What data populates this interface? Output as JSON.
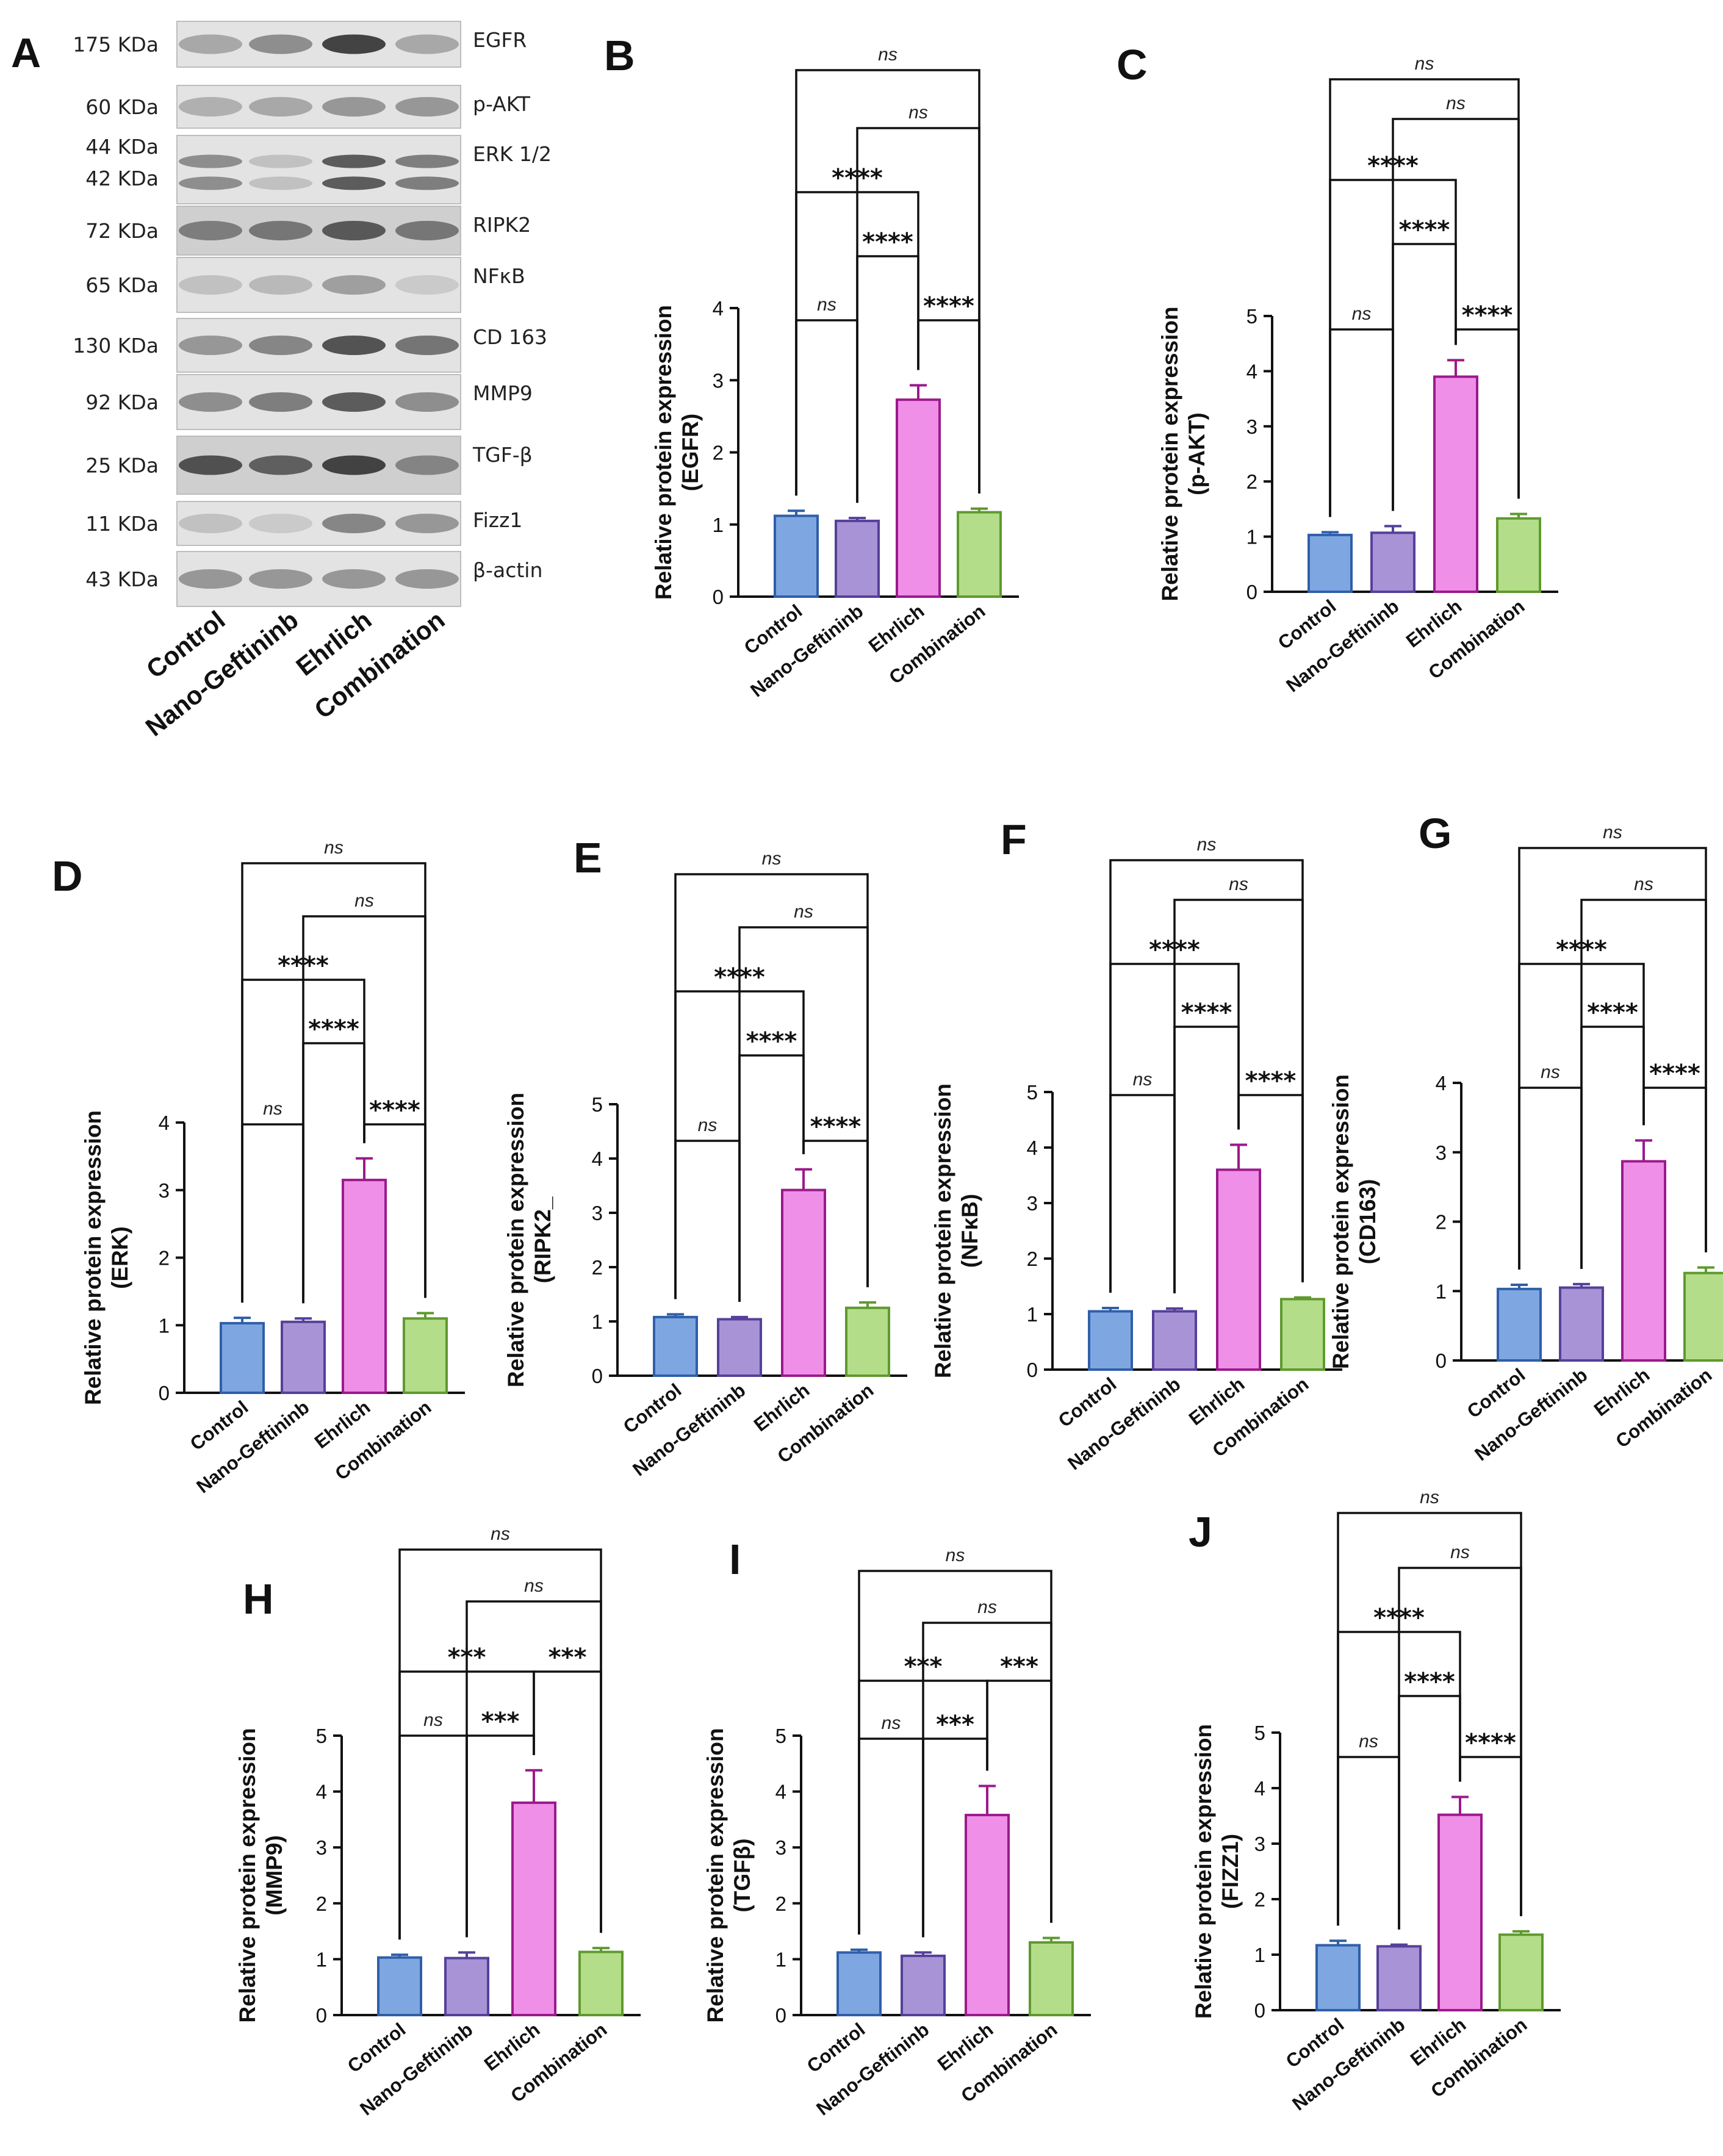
{
  "panel_a": {
    "label": "A",
    "rows": [
      {
        "kda": [
          "175  KDa"
        ],
        "protein": "EGFR"
      },
      {
        "kda": [
          "60 KDa"
        ],
        "protein": "p-AKT"
      },
      {
        "kda": [
          "44 KDa",
          "42 KDa"
        ],
        "protein": "ERK 1/2"
      },
      {
        "kda": [
          "72 KDa"
        ],
        "protein": "RIPK2"
      },
      {
        "kda": [
          "65 KDa"
        ],
        "protein": "NFκB"
      },
      {
        "kda": [
          "130  KDa"
        ],
        "protein": "CD 163"
      },
      {
        "kda": [
          "92 KDa"
        ],
        "protein": "MMP9"
      },
      {
        "kda": [
          "25 KDa"
        ],
        "protein": "TGF-β"
      },
      {
        "kda": [
          "11 KDa"
        ],
        "protein": "Fizz1"
      },
      {
        "kda": [
          "43 KDa"
        ],
        "protein": "β-actin"
      }
    ],
    "lanes": [
      "Control",
      "Nano-Geftininb",
      "Ehrlich",
      "Combination"
    ]
  },
  "colors": {
    "fills": [
      "#7ea6e0",
      "#a893d6",
      "#ef8fe8",
      "#b4dd8a"
    ],
    "strokes": [
      "#2f5fa8",
      "#55409a",
      "#9b1a8c",
      "#5e9a2e"
    ]
  },
  "chart_data": [
    {
      "panel": "B",
      "type": "bar",
      "title": "",
      "ylabel": [
        "Relative protein expression",
        "(EGFR)"
      ],
      "ylim": [
        0,
        4
      ],
      "ticks": [
        "0",
        "1",
        "2",
        "3",
        "4"
      ],
      "categories": [
        "Control",
        "Nano-Geftininb",
        "Ehrlich",
        "Combination"
      ],
      "values": [
        1.12,
        1.05,
        2.73,
        1.17
      ],
      "errors": [
        0.07,
        0.04,
        0.2,
        0.05
      ],
      "annotations": [
        {
          "from": 0,
          "to": 3,
          "level": 0,
          "label": "ns"
        },
        {
          "from": 1,
          "to": 3,
          "level": 1,
          "label": "ns"
        },
        {
          "from": 0,
          "to": 2,
          "level": 2,
          "label": "****"
        },
        {
          "from": 1,
          "to": 2,
          "level": 3,
          "label": "****"
        },
        {
          "from": 0,
          "to": 1,
          "level": 4,
          "label": "ns"
        },
        {
          "from": 2,
          "to": 3,
          "level": 4,
          "label": "****"
        }
      ]
    },
    {
      "panel": "C",
      "type": "bar",
      "title": "",
      "ylabel": [
        "Relative protein expression",
        "(p-AKT)"
      ],
      "ylim": [
        0,
        5
      ],
      "ticks": [
        "0",
        "1",
        "2",
        "3",
        "4",
        "5"
      ],
      "categories": [
        "Control",
        "Nano-Geftininb",
        "Ehrlich",
        "Combination"
      ],
      "values": [
        1.03,
        1.07,
        3.9,
        1.33
      ],
      "errors": [
        0.05,
        0.12,
        0.3,
        0.08
      ],
      "annotations": [
        {
          "from": 0,
          "to": 3,
          "level": 0,
          "label": "ns"
        },
        {
          "from": 1,
          "to": 3,
          "level": 1,
          "label": "ns"
        },
        {
          "from": 0,
          "to": 2,
          "level": 2,
          "label": "****"
        },
        {
          "from": 1,
          "to": 2,
          "level": 3,
          "label": "****"
        },
        {
          "from": 0,
          "to": 1,
          "level": 4,
          "label": "ns"
        },
        {
          "from": 2,
          "to": 3,
          "level": 4,
          "label": "****"
        }
      ]
    },
    {
      "panel": "D",
      "type": "bar",
      "title": "",
      "ylabel": [
        "Relative protein expression",
        "(ERK)"
      ],
      "ylim": [
        0,
        4
      ],
      "ticks": [
        "0",
        "1",
        "2",
        "3",
        "4"
      ],
      "categories": [
        "Control",
        "Nano-Geftininb",
        "Ehrlich",
        "Combination"
      ],
      "values": [
        1.03,
        1.05,
        3.15,
        1.1
      ],
      "errors": [
        0.08,
        0.05,
        0.32,
        0.08
      ],
      "annotations": [
        {
          "from": 0,
          "to": 3,
          "level": 0,
          "label": "ns"
        },
        {
          "from": 1,
          "to": 3,
          "level": 1,
          "label": "ns"
        },
        {
          "from": 0,
          "to": 2,
          "level": 2,
          "label": "****"
        },
        {
          "from": 1,
          "to": 2,
          "level": 3,
          "label": "****"
        },
        {
          "from": 0,
          "to": 1,
          "level": 4,
          "label": "ns"
        },
        {
          "from": 2,
          "to": 3,
          "level": 4,
          "label": "****"
        }
      ]
    },
    {
      "panel": "E",
      "type": "bar",
      "title": "",
      "ylabel": [
        "Relative protein expression",
        "(RIPK2_"
      ],
      "ylim": [
        0,
        5
      ],
      "ticks": [
        "0",
        "1",
        "2",
        "3",
        "4",
        "5"
      ],
      "categories": [
        "Control",
        "Nano-Geftininb",
        "Ehrlich",
        "Combination"
      ],
      "values": [
        1.08,
        1.04,
        3.42,
        1.25
      ],
      "errors": [
        0.05,
        0.04,
        0.38,
        0.1
      ],
      "annotations": [
        {
          "from": 0,
          "to": 3,
          "level": 0,
          "label": "ns"
        },
        {
          "from": 1,
          "to": 3,
          "level": 1,
          "label": "ns"
        },
        {
          "from": 0,
          "to": 2,
          "level": 2,
          "label": "****"
        },
        {
          "from": 1,
          "to": 2,
          "level": 3,
          "label": "****"
        },
        {
          "from": 0,
          "to": 1,
          "level": 4,
          "label": "ns"
        },
        {
          "from": 2,
          "to": 3,
          "level": 4,
          "label": "****"
        }
      ]
    },
    {
      "panel": "F",
      "type": "bar",
      "title": "",
      "ylabel": [
        "Relative protein expression",
        "(NFκB)"
      ],
      "ylim": [
        0,
        5
      ],
      "ticks": [
        "0",
        "1",
        "2",
        "3",
        "4",
        "5"
      ],
      "categories": [
        "Control",
        "Nano-Geftininb",
        "Ehrlich",
        "Combination"
      ],
      "values": [
        1.05,
        1.05,
        3.6,
        1.27
      ],
      "errors": [
        0.06,
        0.05,
        0.45,
        0.03
      ],
      "annotations": [
        {
          "from": 0,
          "to": 3,
          "level": 0,
          "label": "ns"
        },
        {
          "from": 1,
          "to": 3,
          "level": 1,
          "label": "ns"
        },
        {
          "from": 0,
          "to": 2,
          "level": 2,
          "label": "****"
        },
        {
          "from": 1,
          "to": 2,
          "level": 3,
          "label": "****"
        },
        {
          "from": 0,
          "to": 1,
          "level": 4,
          "label": "ns"
        },
        {
          "from": 2,
          "to": 3,
          "level": 4,
          "label": "****"
        }
      ]
    },
    {
      "panel": "G",
      "type": "bar",
      "title": "",
      "ylabel": [
        "Relative protein expression",
        "(CD163)"
      ],
      "ylim": [
        0,
        4
      ],
      "ticks": [
        "0",
        "1",
        "2",
        "3",
        "4"
      ],
      "categories": [
        "Control",
        "Nano-Geftininb",
        "Ehrlich",
        "Combination"
      ],
      "values": [
        1.03,
        1.05,
        2.87,
        1.26
      ],
      "errors": [
        0.06,
        0.05,
        0.3,
        0.08
      ],
      "annotations": [
        {
          "from": 0,
          "to": 3,
          "level": 0,
          "label": "ns"
        },
        {
          "from": 1,
          "to": 3,
          "level": 1,
          "label": "ns"
        },
        {
          "from": 0,
          "to": 2,
          "level": 2,
          "label": "****"
        },
        {
          "from": 1,
          "to": 2,
          "level": 3,
          "label": "****"
        },
        {
          "from": 0,
          "to": 1,
          "level": 4,
          "label": "ns"
        },
        {
          "from": 2,
          "to": 3,
          "level": 4,
          "label": "****"
        }
      ]
    },
    {
      "panel": "H",
      "type": "bar",
      "title": "",
      "ylabel": [
        "Relative protein expression",
        "(MMP9)"
      ],
      "ylim": [
        0,
        5
      ],
      "ticks": [
        "0",
        "1",
        "2",
        "3",
        "4",
        "5"
      ],
      "categories": [
        "Control",
        "Nano-Geftininb",
        "Ehrlich",
        "Combination"
      ],
      "values": [
        1.03,
        1.02,
        3.8,
        1.13
      ],
      "errors": [
        0.05,
        0.1,
        0.58,
        0.07
      ],
      "annotations": [
        {
          "from": 0,
          "to": 3,
          "level": 0,
          "label": "ns"
        },
        {
          "from": 1,
          "to": 3,
          "level": 1,
          "label": "ns"
        },
        {
          "from": 0,
          "to": 2,
          "level": 2,
          "label": "***"
        },
        {
          "from": 2,
          "to": 3,
          "level": 2,
          "label": "***"
        },
        {
          "from": 0,
          "to": 1,
          "level": 3,
          "label": "ns"
        },
        {
          "from": 1,
          "to": 2,
          "level": 3,
          "label": "***"
        }
      ]
    },
    {
      "panel": "I",
      "type": "bar",
      "title": "",
      "ylabel": [
        "Relative protein expression",
        "(TGFβ)"
      ],
      "ylim": [
        0,
        5
      ],
      "ticks": [
        "0",
        "1",
        "2",
        "3",
        "4",
        "5"
      ],
      "categories": [
        "Control",
        "Nano-Geftininb",
        "Ehrlich",
        "Combination"
      ],
      "values": [
        1.12,
        1.06,
        3.58,
        1.3
      ],
      "errors": [
        0.05,
        0.06,
        0.52,
        0.08
      ],
      "annotations": [
        {
          "from": 0,
          "to": 3,
          "level": 0,
          "label": "ns"
        },
        {
          "from": 1,
          "to": 3,
          "level": 1,
          "label": "ns"
        },
        {
          "from": 0,
          "to": 2,
          "level": 2,
          "label": "***"
        },
        {
          "from": 2,
          "to": 3,
          "level": 2,
          "label": "***"
        },
        {
          "from": 0,
          "to": 1,
          "level": 3,
          "label": "ns"
        },
        {
          "from": 1,
          "to": 2,
          "level": 3,
          "label": "***"
        }
      ]
    },
    {
      "panel": "J",
      "type": "bar",
      "title": "",
      "ylabel": [
        "Relative protein expression",
        "(FIZZ1)"
      ],
      "ylim": [
        0,
        5
      ],
      "ticks": [
        "0",
        "1",
        "2",
        "3",
        "4",
        "5"
      ],
      "categories": [
        "Control",
        "Nano-Geftininb",
        "Ehrlich",
        "Combination"
      ],
      "values": [
        1.17,
        1.15,
        3.52,
        1.36
      ],
      "errors": [
        0.08,
        0.03,
        0.32,
        0.06
      ],
      "annotations": [
        {
          "from": 0,
          "to": 3,
          "level": 0,
          "label": "ns"
        },
        {
          "from": 1,
          "to": 3,
          "level": 1,
          "label": "ns"
        },
        {
          "from": 0,
          "to": 2,
          "level": 2,
          "label": "****"
        },
        {
          "from": 1,
          "to": 2,
          "level": 3,
          "label": "****"
        },
        {
          "from": 0,
          "to": 1,
          "level": 4,
          "label": "ns"
        },
        {
          "from": 2,
          "to": 3,
          "level": 4,
          "label": "****"
        }
      ]
    }
  ]
}
